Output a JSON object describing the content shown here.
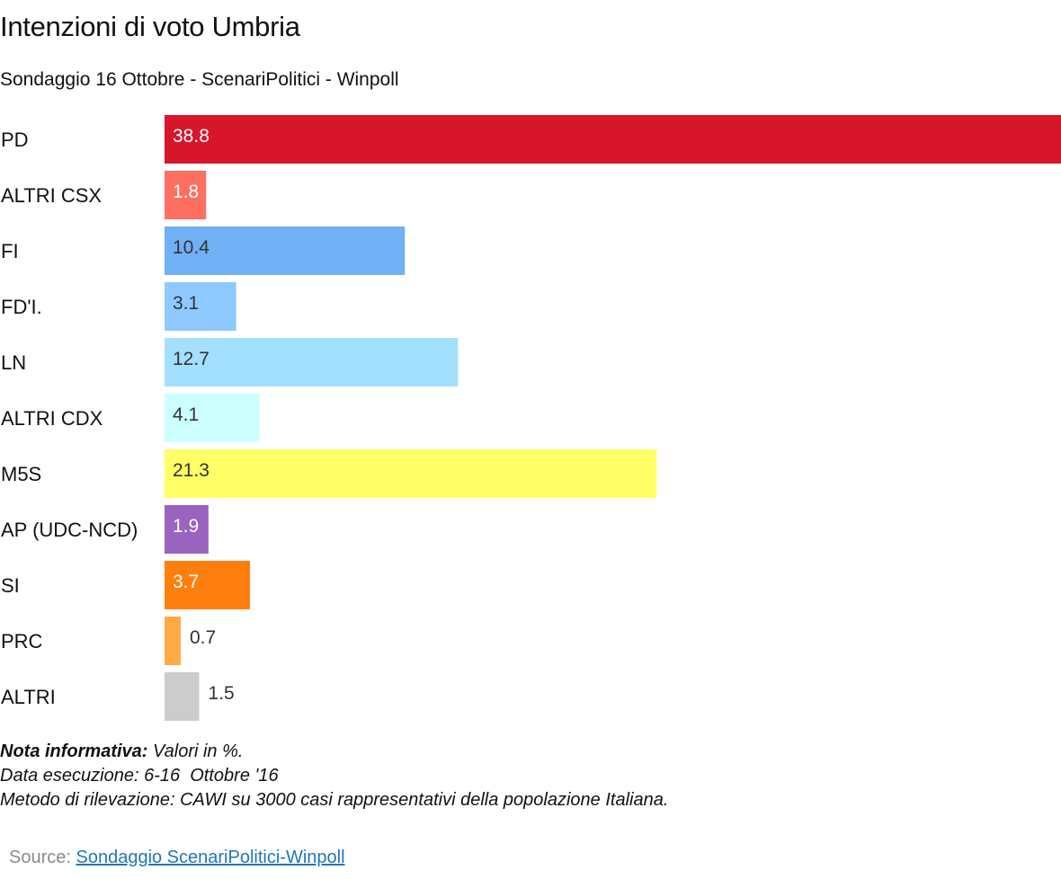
{
  "title": "Intenzioni di voto Umbria",
  "subtitle": "Sondaggio 16 Ottobre - ScenariPolitici - Winpoll",
  "chart_data": {
    "type": "bar",
    "orientation": "horizontal",
    "categories": [
      "PD",
      "ALTRI CSX",
      "FI",
      "FD'I.",
      "LN",
      "ALTRI CDX",
      "M5S",
      "AP (UDC-NCD)",
      "SI",
      "PRC",
      "ALTRI"
    ],
    "values": [
      38.8,
      1.8,
      10.4,
      3.1,
      12.7,
      4.1,
      21.3,
      1.9,
      3.7,
      0.7,
      1.5
    ],
    "value_labels": [
      "38.8",
      "1.8",
      "10.4",
      "3.1",
      "12.7",
      "4.1",
      "21.3",
      "1.9",
      "3.7",
      "0.7",
      "1.5"
    ],
    "colors": [
      "#d7162b",
      "#ff6f61",
      "#70b0f4",
      "#8ec9ff",
      "#a3dfff",
      "#ccffff",
      "#ffff66",
      "#9a63c0",
      "#ff7f0e",
      "#ffaa44",
      "#cccccc"
    ],
    "label_colors": [
      "#ffffff",
      "#ffffff",
      "#333333",
      "#333333",
      "#333333",
      "#333333",
      "#333333",
      "#ffffff",
      "#ffffff",
      "#333333",
      "#333333"
    ],
    "xlim": [
      0,
      38.8
    ],
    "xlabel": "",
    "ylabel": "",
    "grid": false,
    "legend": "none"
  },
  "notes": {
    "nota_label": "Nota informativa:",
    "nota_text": " Valori in %.",
    "data_line": "Data esecuzione: 6-16  Ottobre '16",
    "metodo_line": "Metodo di rilevazione: CAWI su 3000 casi rappresentativi della popolazione Italiana."
  },
  "source": {
    "label": "Source: ",
    "link_text": "Sondaggio ScenariPolitici-Winpoll"
  }
}
